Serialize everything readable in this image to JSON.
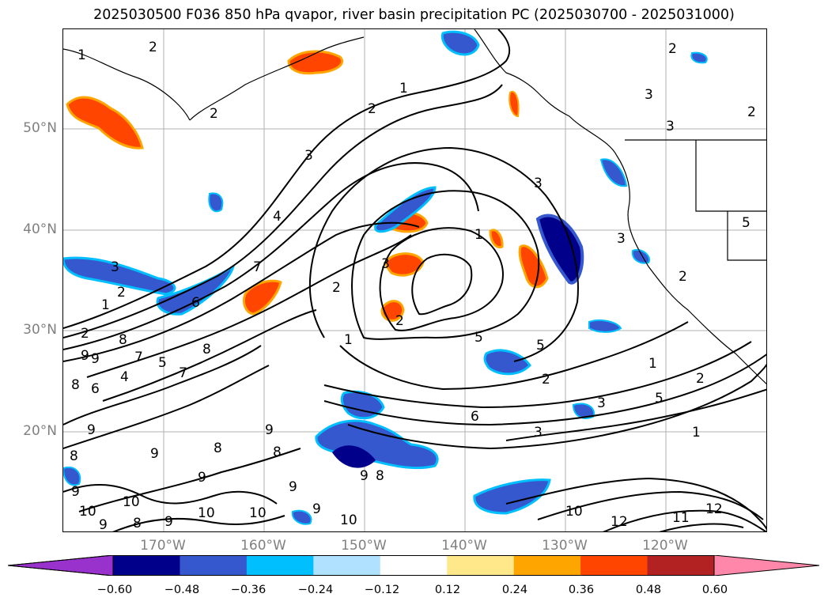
{
  "title": "2025030500 F036 850 hPa qvapor, river basin precipitation PC (2025030700 - 2025031000)",
  "map": {
    "lat_labels": [
      "50°N",
      "40°N",
      "30°N",
      "20°N"
    ],
    "lon_labels": [
      "170°W",
      "160°W",
      "150°W",
      "140°W",
      "130°W",
      "120°W"
    ],
    "grid": true,
    "contour_labels": [
      "1",
      "2",
      "3",
      "4",
      "5",
      "6",
      "7",
      "8",
      "9",
      "10",
      "11",
      "12"
    ]
  },
  "colorbar": {
    "ticks": [
      "−0.60",
      "−0.48",
      "−0.36",
      "−0.24",
      "−0.12",
      "0.12",
      "0.24",
      "0.36",
      "0.48",
      "0.60"
    ],
    "colors": [
      "#9932cc",
      "#00008b",
      "#3558cf",
      "#00bfff",
      "#b0e2ff",
      "#ffffff",
      "#ffe88a",
      "#ffa500",
      "#ff4500",
      "#b22222",
      "#ff88aa"
    ],
    "extend": "both"
  }
}
